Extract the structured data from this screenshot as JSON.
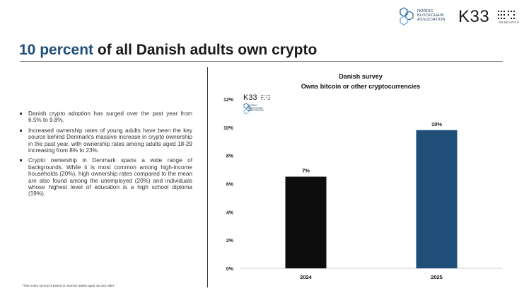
{
  "header": {
    "partner_logo_lines": [
      "NORDIC",
      "BLOCKCHAIN",
      "ASSOCIATION"
    ],
    "brand_logo": "K33",
    "brand_sub": "RESEARCH"
  },
  "title": {
    "highlight": "10 percent",
    "rest": "of all Danish adults own crypto"
  },
  "bullets": [
    "Danish crypto adoption has surged over the past year from 6.5% to 9.8%.",
    "Increased ownership rates of young adults have been the key source behind Denmark's massive increase in crypto ownership in the past year, with ownership rates among adults aged 18-29 increasing from 8% to 23%.",
    "Crypto ownership in Denmark spans a wide range of backgrounds. While it is most common among high-income households (20%), high ownership rates compared to the mean are also found among the unemployed (20%) and individuals whose highest level of education is a high school diploma (19%)."
  ],
  "footnote": "*This entire survey is based on Danish adults aged 18 and older",
  "chart_watermark": {
    "brand": "K33",
    "partner_lines": [
      "NORDIC",
      "BLOCKCHAIN",
      "ASSOCIATION"
    ]
  },
  "colors": {
    "accent": "#1f4e79",
    "bar_2024": "#0d0d0d",
    "bar_2025": "#1f4e79"
  },
  "chart_data": {
    "type": "bar",
    "title": "Danish survey",
    "subtitle": "Owns bitcoin or other cryptocurrencies",
    "categories": [
      "2024",
      "2025"
    ],
    "values": [
      6.5,
      9.8
    ],
    "data_labels": [
      "7%",
      "10%"
    ],
    "y_ticks": [
      0,
      2,
      4,
      6,
      8,
      10,
      12
    ],
    "y_tick_labels": [
      "0%",
      "2%",
      "4%",
      "6%",
      "8%",
      "10%",
      "12%"
    ],
    "ylim": [
      0,
      12
    ],
    "xlabel": "",
    "ylabel": "",
    "grid": false,
    "legend": "none"
  }
}
